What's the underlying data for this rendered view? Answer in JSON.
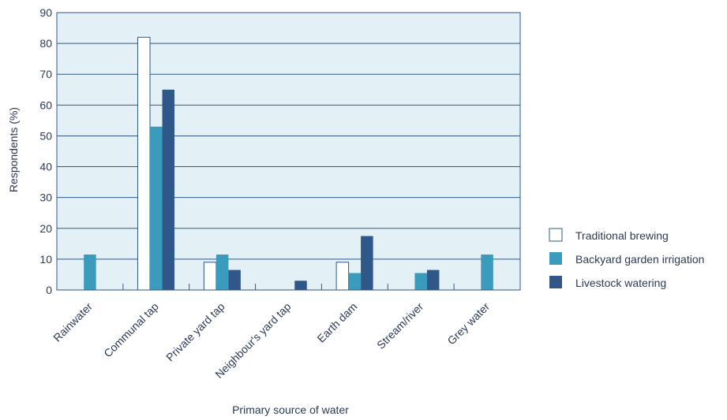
{
  "chart_data": {
    "type": "bar",
    "xlabel": "Primary source of water",
    "ylabel": "Respondents (%)",
    "ylim": [
      0,
      90
    ],
    "yticks": [
      0,
      10,
      20,
      30,
      40,
      50,
      60,
      70,
      80,
      90
    ],
    "grid": true,
    "legend_position": "right",
    "categories": [
      "Rainwater",
      "Communal tap",
      "Private yard tap",
      "Neighbour's yard tap",
      "Earth dam",
      "Stream/river",
      "Grey water"
    ],
    "series": [
      {
        "name": "Traditional brewing",
        "color": "#ffffff",
        "values": [
          0,
          82,
          9,
          0,
          9,
          0,
          0
        ]
      },
      {
        "name": "Backyard garden irrigation",
        "color": "#3a9bbd",
        "values": [
          11.5,
          53,
          11.5,
          0,
          5.5,
          5.5,
          11.5
        ]
      },
      {
        "name": "Livestock watering",
        "color": "#2f5889",
        "values": [
          0,
          65,
          6.5,
          3,
          17.5,
          6.5,
          0
        ]
      }
    ],
    "colors": {
      "plot_background": "#e3f0f6",
      "grid": "#2f5889",
      "axis": "#2f5889",
      "text": "#2b3a55"
    }
  }
}
